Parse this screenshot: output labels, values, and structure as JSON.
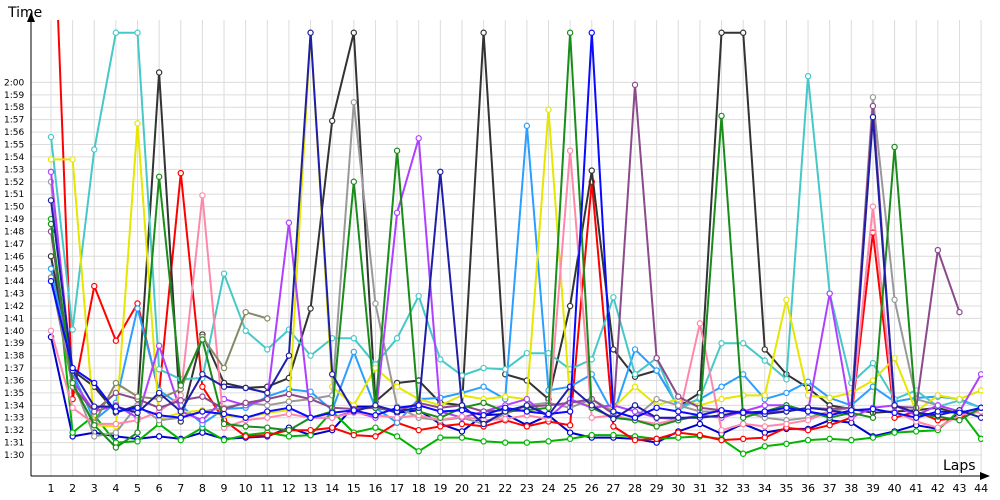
{
  "chart_data": {
    "type": "line",
    "ylabel": "Time",
    "xlabel": "Laps",
    "x": [
      1,
      2,
      3,
      4,
      5,
      6,
      7,
      8,
      9,
      10,
      11,
      12,
      13,
      14,
      15,
      16,
      17,
      18,
      19,
      20,
      21,
      22,
      23,
      24,
      25,
      26,
      27,
      28,
      29,
      30,
      31,
      32,
      33,
      34,
      35,
      36,
      37,
      38,
      39,
      40,
      41,
      42,
      43,
      44
    ],
    "x_ticks": [
      "1",
      "2",
      "3",
      "4",
      "5",
      "6",
      "7",
      "8",
      "9",
      "10",
      "11",
      "12",
      "13",
      "14",
      "15",
      "16",
      "17",
      "18",
      "19",
      "20",
      "21",
      "22",
      "23",
      "24",
      "25",
      "26",
      "27",
      "28",
      "29",
      "30",
      "31",
      "32",
      "33",
      "34",
      "35",
      "36",
      "37",
      "38",
      "39",
      "40",
      "41",
      "42",
      "43",
      "44"
    ],
    "y_ticks": [
      "1:30",
      "1:31",
      "1:32",
      "1:33",
      "1:34",
      "1:35",
      "1:36",
      "1:37",
      "1:38",
      "1:39",
      "1:40",
      "1:41",
      "1:42",
      "1:43",
      "1:44",
      "1:45",
      "1:46",
      "1:47",
      "1:48",
      "1:49",
      "1:50",
      "1:51",
      "1:52",
      "1:53",
      "1:54",
      "1:55",
      "1:56",
      "1:57",
      "1:58",
      "1:59",
      "2:00"
    ],
    "ylim_seconds": [
      89,
      122
    ],
    "grid": true,
    "legend": "none",
    "series": [
      {
        "color": "#0000cc",
        "values": [
          99.5,
          91.5,
          91.8,
          91.5,
          91.3,
          91.5,
          91.3,
          91.8,
          91.3,
          91.4,
          91.5,
          92.2,
          91.6,
          92.0,
          93.9,
          93.9,
          93.4,
          93.6,
          92.5,
          91.9,
          93.2,
          93.3,
          92.4,
          93.2,
          91.8,
          91.4,
          91.4,
          91.3,
          91.0,
          91.9,
          92.5,
          91.7,
          92.5,
          91.8,
          92.1,
          92.1,
          92.8,
          92.6,
          91.5,
          91.9,
          92.4,
          92.1,
          93.4,
          93.7
        ]
      },
      {
        "color": "#00b400",
        "values": [
          109,
          91.8,
          93.2,
          91.0,
          91.1,
          92.5,
          91.2,
          92.2,
          91.2,
          91.6,
          91.8,
          91.5,
          91.6,
          93.5,
          91.8,
          92.2,
          91.5,
          90.3,
          91.4,
          91.4,
          91.1,
          91.0,
          91.0,
          91.1,
          91.3,
          91.6,
          91.6,
          91.5,
          91.3,
          91.4,
          91.5,
          91.3,
          90.1,
          90.7,
          90.9,
          91.2,
          91.3,
          91.2,
          91.4,
          91.8,
          91.9,
          92.0,
          93.6,
          91.3
        ]
      },
      {
        "color": "#ff0000",
        "values": [
          140,
          94.5,
          103.6,
          99.2,
          102.2,
          95.0,
          112.7,
          95.5,
          92.8,
          91.5,
          91.6,
          92.0,
          92.0,
          92.2,
          91.6,
          91.5,
          92.6,
          92.0,
          92.3,
          92.5,
          92.3,
          92.8,
          92.3,
          92.7,
          92.4,
          112.0,
          92.3,
          91.2,
          91.3,
          91.8,
          91.6,
          91.2,
          91.3,
          91.4,
          92.2,
          92.0,
          92.4,
          93.0,
          107.9,
          93.0,
          93.5,
          92.8,
          93.0,
          93.6
        ]
      },
      {
        "color": "#333333",
        "values": [
          106,
          96.8,
          95.5,
          93.4,
          94.0,
          120.8,
          92.7,
          99.7,
          95.8,
          95.4,
          95.5,
          96.2,
          101.8,
          116.9,
          124,
          94.3,
          95.8,
          96.0,
          94.2,
          94.0,
          124,
          96.5,
          96.0,
          94.5,
          102.0,
          112.9,
          98.5,
          96.3,
          96.8,
          93.9,
          95.0,
          124,
          124,
          98.5,
          96.5,
          95.4,
          94.0,
          93.7,
          93.4,
          93.5,
          93.6,
          93.8,
          93.3,
          93.8
        ]
      },
      {
        "color": "#2a9fff",
        "values": [
          105,
          96.6,
          92.8,
          94.2,
          101.8,
          95.2,
          94.0,
          92.5,
          93.7,
          93.8,
          94.7,
          95.3,
          95.1,
          93.6,
          98.3,
          93.8,
          92.6,
          94.5,
          94.6,
          95.0,
          95.5,
          94.5,
          116.5,
          95.2,
          95.5,
          96.5,
          93.3,
          98.5,
          96.8,
          93.9,
          94.5,
          95.5,
          96.5,
          94.5,
          95.0,
          95.9,
          94.6,
          94.0,
          95.5,
          94.3,
          94.6,
          94.7,
          94.5,
          93.8
        ]
      },
      {
        "color": "#46c8c8",
        "values": [
          115.6,
          100.1,
          114.6,
          124,
          124,
          96.9,
          96.1,
          96.2,
          104.6,
          100.0,
          98.5,
          100.1,
          98.0,
          99.4,
          99.4,
          97.3,
          99.4,
          102.8,
          97.7,
          96.4,
          97.0,
          96.9,
          98.2,
          98.2,
          96.9,
          97.7,
          102.7,
          96.5,
          97.8,
          93.6,
          94.6,
          99.0,
          99.0,
          97.6,
          96.1,
          120.5,
          103.0,
          95.8,
          97.4,
          94.5,
          95.2,
          93.9,
          94.4,
          93.8
        ]
      },
      {
        "color": "#e6e600",
        "values": [
          113.8,
          113.8,
          92.4,
          92.3,
          116.7,
          92.9,
          93.4,
          93.6,
          93.2,
          93.0,
          93.4,
          93.6,
          124,
          95.5,
          94.0,
          97.0,
          95.5,
          94.5,
          94.0,
          94.8,
          94.5,
          94.7,
          94.5,
          117.8,
          94.3,
          94.0,
          93.8,
          95.5,
          94.0,
          94.5,
          94.0,
          94.5,
          94.8,
          94.8,
          102.5,
          94.8,
          94.6,
          95.0,
          96.0,
          97.8,
          93.5,
          94.8,
          94.5,
          95.2
        ]
      },
      {
        "color": "#999999",
        "values": [
          112,
          96.0,
          91.5,
          91.8,
          94.0,
          92.8,
          93.0,
          93.5,
          93.8,
          94.2,
          94.0,
          94.3,
          94.5,
          94.8,
          118.4,
          102.2,
          93.9,
          93.0,
          92.8,
          93.0,
          92.5,
          93.3,
          94.0,
          94.2,
          93.8,
          94.5,
          93.5,
          93.0,
          94.5,
          94.0,
          93.5,
          93.5,
          93.5,
          93.0,
          92.8,
          93.0,
          93.5,
          93.8,
          118.8,
          102.5,
          94.5,
          94.0,
          93.5,
          93.5
        ]
      },
      {
        "color": "#b040ff",
        "values": [
          112.8,
          96.0,
          93.5,
          94.0,
          93.0,
          98.8,
          93.5,
          92.8,
          94.5,
          94.0,
          94.5,
          108.7,
          93.0,
          93.0,
          93.5,
          93.0,
          109.5,
          115.5,
          93.5,
          93.0,
          93.5,
          94.0,
          94.5,
          93.0,
          94.5,
          93.8,
          94.0,
          93.5,
          93.0,
          92.9,
          93.2,
          93.0,
          93.5,
          94.0,
          94.0,
          93.5,
          103.0,
          93.0,
          93.8,
          94.0,
          93.2,
          94.0,
          93.5,
          96.5
        ]
      },
      {
        "color": "#ff88aa",
        "values": [
          100,
          93.8,
          92.5,
          92.5,
          92.8,
          93.5,
          94.8,
          110.9,
          92.2,
          92.8,
          93.0,
          93.3,
          93.0,
          93.0,
          93.4,
          93.2,
          93.0,
          93.2,
          92.8,
          93.1,
          92.8,
          92.9,
          93.2,
          92.9,
          114.5,
          93.0,
          93.2,
          92.8,
          92.5,
          92.9,
          100.6,
          92.0,
          92.5,
          92.3,
          92.5,
          92.8,
          93.5,
          93.2,
          110.0,
          93.5,
          92.7,
          92.2,
          93.2,
          93.5
        ]
      },
      {
        "color": "#8b4a8b",
        "values": [
          108,
          95.5,
          93.5,
          95.0,
          94.5,
          93.8,
          94.4,
          94.7,
          93.7,
          94.2,
          94.5,
          94.9,
          94.5,
          93.8,
          93.7,
          93.8,
          93.5,
          94.2,
          93.8,
          94.0,
          93.5,
          93.6,
          93.9,
          94.0,
          94.2,
          94.5,
          93.3,
          119.8,
          97.8,
          94.7,
          93.8,
          93.6,
          93.3,
          93.5,
          93.5,
          93.8,
          93.7,
          93.8,
          118.1,
          93.9,
          93.8,
          106.5,
          101.5,
          null
        ]
      },
      {
        "color": "#888866",
        "values": [
          104.3,
          95.5,
          92.6,
          95.8,
          94.7,
          94.5,
          95.3,
          99.5,
          97.0,
          101.5,
          101.0,
          null,
          null,
          null,
          null,
          null,
          null,
          null,
          null,
          null,
          null,
          null,
          null,
          null,
          null,
          null,
          null,
          null,
          null,
          null,
          null,
          null,
          null,
          null,
          null,
          null,
          null,
          null,
          null,
          null,
          null,
          null,
          null,
          null
        ]
      },
      {
        "color": "#1a8c1a",
        "values": [
          108.6,
          95.8,
          92.4,
          90.6,
          91.8,
          112.4,
          95.6,
          99.3,
          92.5,
          92.3,
          92.2,
          92.0,
          93.0,
          93.5,
          112.0,
          93.8,
          114.5,
          93.5,
          93.0,
          93.8,
          94.2,
          93.5,
          93.6,
          93.8,
          124,
          93.8,
          93.0,
          92.8,
          92.3,
          92.8,
          93.2,
          117.3,
          93.0,
          93.5,
          94.0,
          93.5,
          93.0,
          93.4,
          93.0,
          114.8,
          93.3,
          93.1,
          92.8,
          93.8
        ]
      },
      {
        "color": "#1e1ea8",
        "values": [
          110.5,
          96.8,
          93.9,
          93.9,
          93.4,
          95.0,
          93.5,
          96.5,
          95.5,
          95.4,
          95.0,
          98.0,
          124,
          96.5,
          93.5,
          94.0,
          93.5,
          93.8,
          112.8,
          94.0,
          92.5,
          93.5,
          94.0,
          93.2,
          95.5,
          94.0,
          92.9,
          94.0,
          93.0,
          93.0,
          93.0,
          93.2,
          93.5,
          93.3,
          93.5,
          93.8,
          93.6,
          93.3,
          117.2,
          94.0,
          93.4,
          93.2,
          93.6,
          93.0
        ]
      },
      {
        "color": "#0a0aff",
        "values": [
          104,
          97.0,
          95.8,
          93.5,
          93.8,
          93.2,
          93.0,
          93.5,
          93.3,
          93.0,
          93.5,
          93.8,
          93.0,
          93.4,
          93.6,
          93.2,
          93.8,
          94.0,
          93.5,
          93.6,
          93.2,
          93.8,
          93.5,
          93.3,
          93.5,
          124,
          93.5,
          93.0,
          93.8,
          93.5,
          93.2,
          93.6,
          93.4,
          93.5,
          93.8,
          93.5,
          93.2,
          93.6,
          93.7,
          93.4,
          93.0,
          93.5,
          93.4,
          93.8
        ]
      }
    ]
  }
}
